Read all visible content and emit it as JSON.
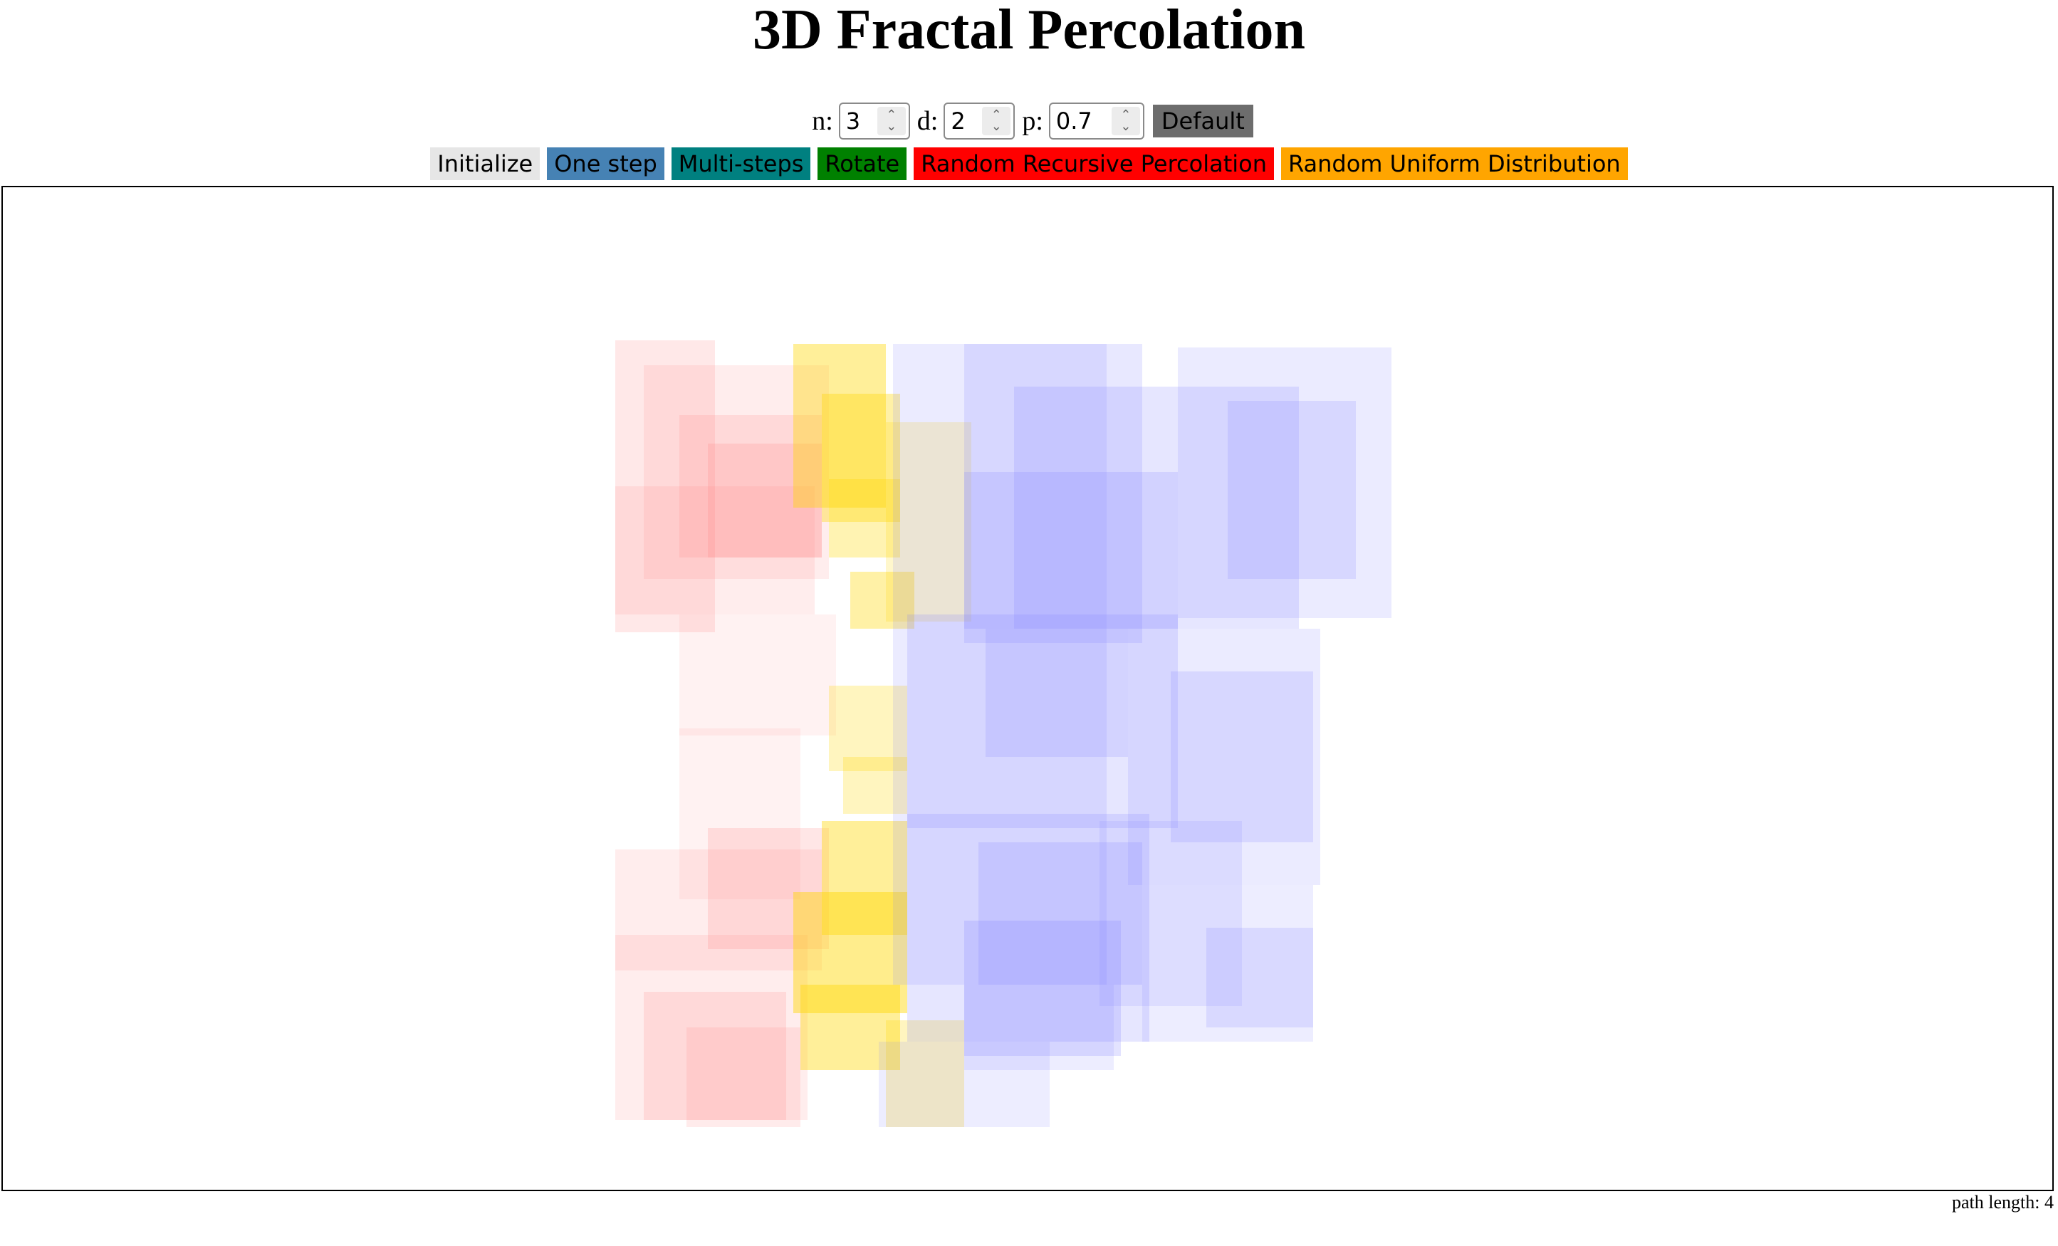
{
  "page": {
    "title": "3D Fractal Percolation"
  },
  "controls": {
    "n_label": "n:",
    "n_value": "3",
    "d_label": "d:",
    "d_value": "2",
    "p_label": "p:",
    "p_value": "0.7",
    "default_label": "Default"
  },
  "buttons": [
    {
      "name": "initialize-button",
      "label": "Initialize",
      "color": "#e6e6e6"
    },
    {
      "name": "one-step-button",
      "label": "One step",
      "color": "#4682b4"
    },
    {
      "name": "multi-steps-button",
      "label": "Multi-steps",
      "color": "#008080"
    },
    {
      "name": "rotate-button",
      "label": "Rotate",
      "color": "#008000"
    },
    {
      "name": "random-recursive-percolation-button",
      "label": "Random Recursive Percolation",
      "color": "#ff0000"
    },
    {
      "name": "random-uniform-distribution-button",
      "label": "Random Uniform Distribution",
      "color": "#ffa500"
    }
  ],
  "visualization": {
    "colors": {
      "red_cubes": "#ff8080",
      "yellow_cubes": "#ffd700",
      "blue_cubes": "#8080ff",
      "canvas_bg": "#ffffff"
    }
  },
  "status": {
    "path_length": "path length: 4"
  }
}
